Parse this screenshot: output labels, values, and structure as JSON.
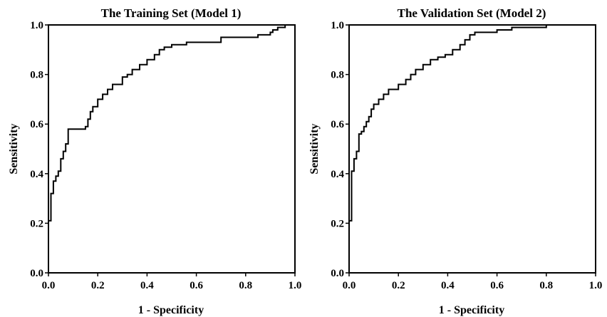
{
  "chart_data": [
    {
      "type": "line",
      "title": "The Training Set (Model 1)",
      "xlabel": "1 - Specificity",
      "ylabel": "Sensitivity",
      "xlim": [
        0.0,
        1.0
      ],
      "ylim": [
        0.0,
        1.0
      ],
      "xticks": [
        "0.0",
        "0.2",
        "0.4",
        "0.6",
        "0.8",
        "1.0"
      ],
      "yticks": [
        "0.0",
        "0.2",
        "0.4",
        "0.6",
        "0.8",
        "1.0"
      ],
      "grid": false,
      "series": [
        {
          "step": true,
          "x": [
            0.0,
            0.0,
            0.01,
            0.01,
            0.02,
            0.02,
            0.03,
            0.03,
            0.04,
            0.04,
            0.05,
            0.05,
            0.06,
            0.06,
            0.07,
            0.07,
            0.08,
            0.08,
            0.15,
            0.15,
            0.16,
            0.16,
            0.17,
            0.17,
            0.18,
            0.18,
            0.2,
            0.2,
            0.22,
            0.22,
            0.24,
            0.24,
            0.26,
            0.26,
            0.3,
            0.3,
            0.32,
            0.32,
            0.34,
            0.34,
            0.37,
            0.37,
            0.4,
            0.4,
            0.43,
            0.43,
            0.45,
            0.45,
            0.47,
            0.47,
            0.5,
            0.5,
            0.56,
            0.56,
            0.59,
            0.59,
            0.7,
            0.7,
            0.85,
            0.85,
            0.9,
            0.9,
            0.91,
            0.91,
            0.93,
            0.93,
            0.96,
            0.96,
            1.0
          ],
          "y": [
            0.0,
            0.21,
            0.21,
            0.32,
            0.32,
            0.37,
            0.37,
            0.39,
            0.39,
            0.41,
            0.41,
            0.46,
            0.46,
            0.49,
            0.49,
            0.52,
            0.52,
            0.58,
            0.58,
            0.59,
            0.59,
            0.62,
            0.62,
            0.65,
            0.65,
            0.67,
            0.67,
            0.7,
            0.7,
            0.72,
            0.72,
            0.74,
            0.74,
            0.76,
            0.76,
            0.79,
            0.79,
            0.8,
            0.8,
            0.82,
            0.82,
            0.84,
            0.84,
            0.86,
            0.86,
            0.88,
            0.88,
            0.9,
            0.9,
            0.91,
            0.91,
            0.92,
            0.92,
            0.93,
            0.93,
            0.93,
            0.93,
            0.95,
            0.95,
            0.96,
            0.96,
            0.97,
            0.97,
            0.98,
            0.98,
            0.99,
            0.99,
            1.0,
            1.0
          ]
        }
      ]
    },
    {
      "type": "line",
      "title": "The Validation Set (Model 2)",
      "xlabel": "1 - Specificity",
      "ylabel": "Sensitivity",
      "xlim": [
        0.0,
        1.0
      ],
      "ylim": [
        0.0,
        1.0
      ],
      "xticks": [
        "0.0",
        "0.2",
        "0.4",
        "0.6",
        "0.8",
        "1.0"
      ],
      "yticks": [
        "0.0",
        "0.2",
        "0.4",
        "0.6",
        "0.8",
        "1.0"
      ],
      "grid": false,
      "series": [
        {
          "step": true,
          "x": [
            0.0,
            0.0,
            0.01,
            0.01,
            0.02,
            0.02,
            0.03,
            0.03,
            0.04,
            0.04,
            0.05,
            0.05,
            0.06,
            0.06,
            0.07,
            0.07,
            0.08,
            0.08,
            0.09,
            0.09,
            0.1,
            0.1,
            0.12,
            0.12,
            0.14,
            0.14,
            0.16,
            0.16,
            0.2,
            0.2,
            0.23,
            0.23,
            0.25,
            0.25,
            0.27,
            0.27,
            0.3,
            0.3,
            0.33,
            0.33,
            0.36,
            0.36,
            0.39,
            0.39,
            0.42,
            0.42,
            0.45,
            0.45,
            0.47,
            0.47,
            0.49,
            0.49,
            0.51,
            0.51,
            0.6,
            0.6,
            0.66,
            0.66,
            0.8,
            0.8,
            0.84,
            0.84,
            1.0
          ],
          "y": [
            0.0,
            0.21,
            0.21,
            0.41,
            0.41,
            0.46,
            0.46,
            0.49,
            0.49,
            0.56,
            0.56,
            0.57,
            0.57,
            0.59,
            0.59,
            0.61,
            0.61,
            0.63,
            0.63,
            0.66,
            0.66,
            0.68,
            0.68,
            0.7,
            0.7,
            0.72,
            0.72,
            0.74,
            0.74,
            0.76,
            0.76,
            0.78,
            0.78,
            0.8,
            0.8,
            0.82,
            0.82,
            0.84,
            0.84,
            0.86,
            0.86,
            0.87,
            0.87,
            0.88,
            0.88,
            0.9,
            0.9,
            0.92,
            0.92,
            0.94,
            0.94,
            0.96,
            0.96,
            0.97,
            0.97,
            0.98,
            0.98,
            0.99,
            0.99,
            1.0,
            1.0,
            1.0,
            1.0
          ]
        }
      ]
    }
  ]
}
